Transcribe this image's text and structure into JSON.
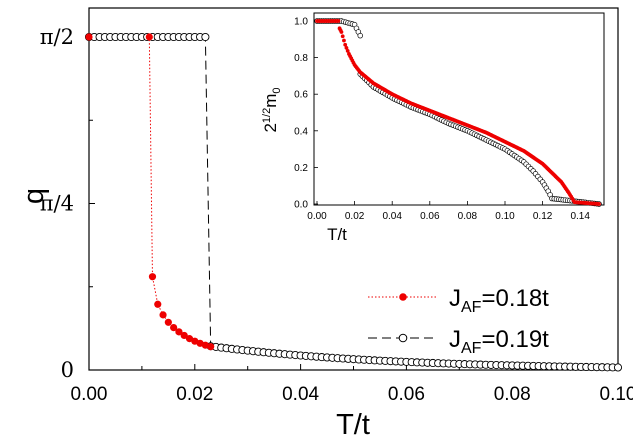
{
  "chart_data": [
    {
      "type": "scatter",
      "title": "",
      "xlabel": "T/t",
      "ylabel": "q",
      "xlim": [
        0,
        0.1
      ],
      "ylim": [
        0,
        1.5708
      ],
      "x_ticks": [
        "0.00",
        "0.02",
        "0.04",
        "0.06",
        "0.08",
        "0.10"
      ],
      "y_ticks": [
        {
          "value": 0,
          "label": "0"
        },
        {
          "value": 0.7854,
          "label": "π/4"
        },
        {
          "value": 1.5708,
          "label": "π/2"
        }
      ],
      "legend": {
        "position": "bottom-right"
      },
      "series": [
        {
          "name_main": "J",
          "name_sub": "AF",
          "name_rest": "=0.18t",
          "marker": "filled-circle",
          "color": "#ee0000",
          "line": "dotted",
          "points": [
            [
              0.0,
              1.5708
            ],
            [
              0.0114,
              1.5708
            ],
            [
              0.012,
              0.44
            ],
            [
              0.013,
              0.31
            ],
            [
              0.014,
              0.26
            ],
            [
              0.015,
              0.225
            ],
            [
              0.016,
              0.2
            ],
            [
              0.017,
              0.18
            ],
            [
              0.018,
              0.163
            ],
            [
              0.019,
              0.148
            ],
            [
              0.02,
              0.136
            ],
            [
              0.021,
              0.126
            ],
            [
              0.022,
              0.117
            ],
            [
              0.023,
              0.11
            ]
          ]
        },
        {
          "name_main": "J",
          "name_sub": "AF",
          "name_rest": "=0.19t",
          "marker": "open-circle",
          "color": "#000000",
          "line": "dashed",
          "points_flat_until": 0.022,
          "jump_to": [
            0.023,
            0.112
          ],
          "decay_end": [
            0.1,
            0.012
          ]
        }
      ]
    },
    {
      "type": "scatter",
      "title": "",
      "xlabel": "T/t",
      "ylabel_base": "2",
      "ylabel_sup": "1/2",
      "ylabel_main": "m",
      "ylabel_sub": "0",
      "xlim": [
        0,
        0.15
      ],
      "ylim": [
        0,
        1.0
      ],
      "x_ticks": [
        "0.00",
        "0.02",
        "0.04",
        "0.06",
        "0.08",
        "0.10",
        "0.12",
        "0.14"
      ],
      "y_ticks": [
        "0.0",
        "0.2",
        "0.4",
        "0.6",
        "0.8",
        "1.0"
      ],
      "series": [
        {
          "name": "J_AF=0.18t",
          "marker": "filled-circle",
          "color": "#ee0000",
          "points": [
            [
              0.0,
              1.0
            ],
            [
              0.0114,
              1.0
            ],
            [
              0.012,
              0.96
            ],
            [
              0.013,
              0.94
            ],
            [
              0.015,
              0.87
            ],
            [
              0.017,
              0.82
            ],
            [
              0.02,
              0.76
            ],
            [
              0.023,
              0.72
            ],
            [
              0.03,
              0.66
            ],
            [
              0.04,
              0.6
            ],
            [
              0.05,
              0.55
            ],
            [
              0.06,
              0.51
            ],
            [
              0.07,
              0.47
            ],
            [
              0.08,
              0.43
            ],
            [
              0.09,
              0.39
            ],
            [
              0.1,
              0.34
            ],
            [
              0.11,
              0.29
            ],
            [
              0.12,
              0.22
            ],
            [
              0.125,
              0.17
            ],
            [
              0.13,
              0.12
            ],
            [
              0.134,
              0.06
            ],
            [
              0.137,
              0.01
            ],
            [
              0.15,
              0.0
            ]
          ]
        },
        {
          "name": "J_AF=0.19t",
          "marker": "open-circle",
          "color": "#000000",
          "points": [
            [
              0.0,
              1.0
            ],
            [
              0.013,
              1.0
            ],
            [
              0.02,
              0.98
            ],
            [
              0.022,
              0.94
            ],
            [
              0.023,
              0.92
            ],
            [
              0.023,
              0.71
            ],
            [
              0.03,
              0.64
            ],
            [
              0.04,
              0.58
            ],
            [
              0.05,
              0.53
            ],
            [
              0.06,
              0.49
            ],
            [
              0.07,
              0.44
            ],
            [
              0.08,
              0.4
            ],
            [
              0.09,
              0.35
            ],
            [
              0.1,
              0.3
            ],
            [
              0.11,
              0.23
            ],
            [
              0.115,
              0.18
            ],
            [
              0.12,
              0.12
            ],
            [
              0.123,
              0.07
            ],
            [
              0.125,
              0.03
            ],
            [
              0.15,
              0.0
            ]
          ]
        }
      ]
    }
  ]
}
